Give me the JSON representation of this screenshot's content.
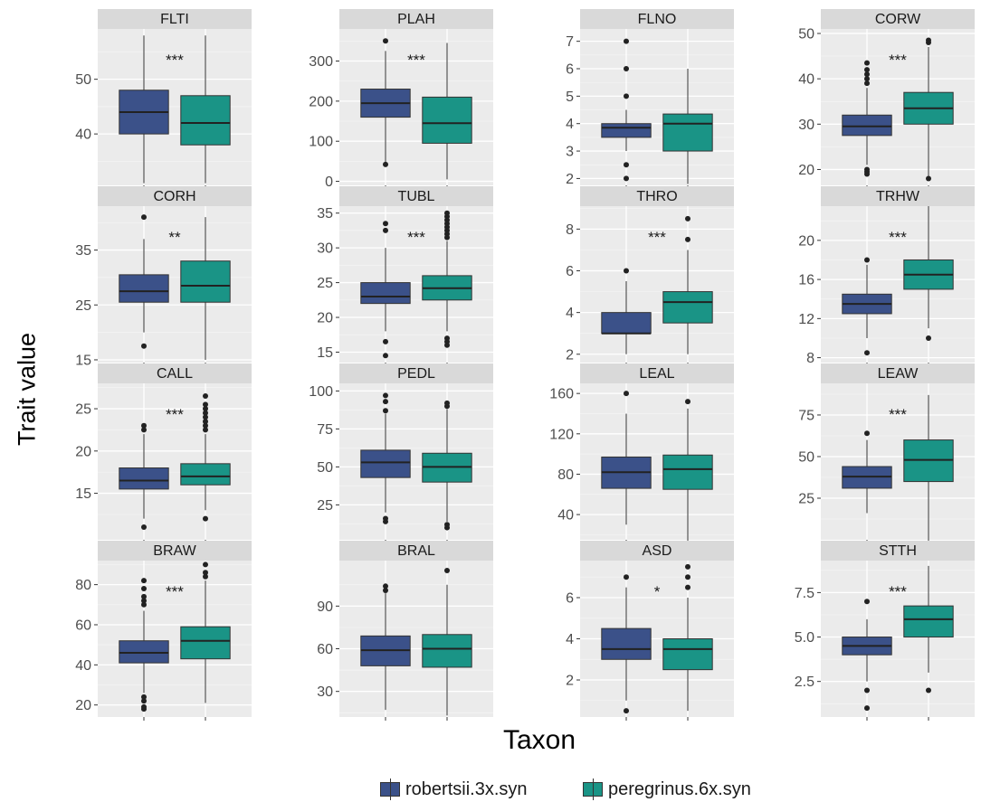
{
  "axes": {
    "ylabel": "Trait value",
    "xlabel": "Taxon"
  },
  "legend": {
    "placement": "bottom",
    "items": [
      {
        "label": "robertsii.3x.syn",
        "color": "#3b5189"
      },
      {
        "label": "peregrinus.6x.syn",
        "color": "#1a9486"
      }
    ]
  },
  "chart_data": {
    "type": "boxplot",
    "grid": true,
    "panel_background": "#ebebeb",
    "strip_background": "#d9d9d9",
    "categories": [
      "robertsii.3x.syn",
      "peregrinus.6x.syn"
    ],
    "panels": [
      {
        "title": "FLTI",
        "ylim": [
          30.6,
          59.2
        ],
        "ticks": [
          40,
          50
        ],
        "annotation": "***",
        "boxes": [
          {
            "min": 31,
            "q1": 40,
            "median": 44,
            "q3": 48,
            "max": 58,
            "outliers": []
          },
          {
            "min": 31,
            "q1": 38,
            "median": 42,
            "q3": 47,
            "max": 58,
            "outliers": []
          }
        ]
      },
      {
        "title": "PLAH",
        "ylim": [
          -10,
          380
        ],
        "ticks": [
          0,
          100,
          200,
          300
        ],
        "annotation": "***",
        "boxes": [
          {
            "min": 45,
            "q1": 160,
            "median": 195,
            "q3": 230,
            "max": 325,
            "outliers": [
              42,
              350
            ]
          },
          {
            "min": 5,
            "q1": 95,
            "median": 145,
            "q3": 210,
            "max": 345,
            "outliers": []
          }
        ]
      },
      {
        "title": "FLNO",
        "ylim": [
          1.75,
          7.45
        ],
        "ticks": [
          2,
          3,
          4,
          5,
          6,
          7
        ],
        "annotation": "",
        "boxes": [
          {
            "min": 3,
            "q1": 3.5,
            "median": 3.85,
            "q3": 4,
            "max": 4.5,
            "outliers": [
              2,
              2.5,
              5,
              6,
              7
            ]
          },
          {
            "min": 1.8,
            "q1": 3,
            "median": 4,
            "q3": 4.35,
            "max": 6,
            "outliers": []
          }
        ]
      },
      {
        "title": "CORW",
        "ylim": [
          16.5,
          51
        ],
        "ticks": [
          20,
          30,
          40,
          50
        ],
        "annotation": "***",
        "boxes": [
          {
            "min": 21,
            "q1": 27.5,
            "median": 29.5,
            "q3": 32,
            "max": 38,
            "outliers": [
              19,
              19.5,
              20,
              39,
              40,
              41,
              42,
              43.5
            ]
          },
          {
            "min": 18,
            "q1": 30,
            "median": 33.5,
            "q3": 37,
            "max": 47,
            "outliers": [
              18,
              48,
              48.5
            ]
          }
        ]
      },
      {
        "title": "CORH",
        "ylim": [
          14.5,
          43
        ],
        "ticks": [
          15,
          25,
          35
        ],
        "annotation": "**",
        "boxes": [
          {
            "min": 20,
            "q1": 25.5,
            "median": 27.5,
            "q3": 30.5,
            "max": 37,
            "outliers": [
              17.5,
              41
            ]
          },
          {
            "min": 15,
            "q1": 25.5,
            "median": 28.5,
            "q3": 33,
            "max": 41,
            "outliers": []
          }
        ]
      },
      {
        "title": "TUBL",
        "ylim": [
          13.5,
          36
        ],
        "ticks": [
          15,
          20,
          25,
          30,
          35
        ],
        "annotation": "***",
        "boxes": [
          {
            "min": 18,
            "q1": 22,
            "median": 23,
            "q3": 25,
            "max": 30,
            "outliers": [
              14.5,
              16.5,
              32.5,
              33.5
            ]
          },
          {
            "min": 18,
            "q1": 22.5,
            "median": 24.2,
            "q3": 26,
            "max": 31,
            "outliers": [
              16,
              16.5,
              17,
              31.5,
              32,
              32.5,
              33,
              33.5,
              34,
              34.5,
              35
            ]
          }
        ]
      },
      {
        "title": "THRO",
        "ylim": [
          1.6,
          9.1
        ],
        "ticks": [
          2,
          4,
          6,
          8
        ],
        "annotation": "***",
        "boxes": [
          {
            "min": 2,
            "q1": 3,
            "median": 3,
            "q3": 4,
            "max": 5.5,
            "outliers": [
              6
            ]
          },
          {
            "min": 2,
            "q1": 3.5,
            "median": 4.5,
            "q3": 5,
            "max": 7,
            "outliers": [
              7.5,
              8.5
            ]
          }
        ]
      },
      {
        "title": "TRHW",
        "ylim": [
          7.5,
          23.5
        ],
        "ticks": [
          8,
          12,
          16,
          20
        ],
        "annotation": "***",
        "boxes": [
          {
            "min": 10,
            "q1": 12.5,
            "median": 13.5,
            "q3": 14.5,
            "max": 17.5,
            "outliers": [
              8.5,
              18
            ]
          },
          {
            "min": 11,
            "q1": 15,
            "median": 16.5,
            "q3": 18,
            "max": 23.5,
            "outliers": [
              10
            ]
          }
        ]
      },
      {
        "title": "CALL",
        "ylim": [
          9.5,
          28
        ],
        "ticks": [
          15,
          20,
          25
        ],
        "annotation": "***",
        "boxes": [
          {
            "min": 12,
            "q1": 15.5,
            "median": 16.5,
            "q3": 18,
            "max": 22,
            "outliers": [
              11,
              22.5,
              23
            ]
          },
          {
            "min": 13,
            "q1": 16,
            "median": 17,
            "q3": 18.5,
            "max": 22,
            "outliers": [
              12,
              22.5,
              23,
              23.5,
              24,
              24.5,
              25,
              25.5,
              26.5
            ]
          }
        ]
      },
      {
        "title": "PEDL",
        "ylim": [
          2,
          105
        ],
        "ticks": [
          25,
          50,
          75,
          100
        ],
        "annotation": "",
        "boxes": [
          {
            "min": 20,
            "q1": 43,
            "median": 53,
            "q3": 61,
            "max": 85,
            "outliers": [
              14,
              16,
              87,
              93,
              97
            ]
          },
          {
            "min": 14,
            "q1": 40,
            "median": 50,
            "q3": 59,
            "max": 88,
            "outliers": [
              10,
              12,
              90,
              92
            ]
          }
        ]
      },
      {
        "title": "LEAL",
        "ylim": [
          15,
          170
        ],
        "ticks": [
          40,
          80,
          120,
          160
        ],
        "annotation": "",
        "boxes": [
          {
            "min": 30,
            "q1": 66,
            "median": 82,
            "q3": 97,
            "max": 140,
            "outliers": [
              160
            ]
          },
          {
            "min": 15,
            "q1": 65,
            "median": 85,
            "q3": 99,
            "max": 145,
            "outliers": [
              152
            ]
          }
        ]
      },
      {
        "title": "LEAW",
        "ylim": [
          0,
          94
        ],
        "ticks": [
          25,
          50,
          75
        ],
        "annotation": "***",
        "boxes": [
          {
            "min": 16,
            "q1": 31,
            "median": 38,
            "q3": 44,
            "max": 60,
            "outliers": [
              64
            ]
          },
          {
            "min": 0,
            "q1": 35,
            "median": 48,
            "q3": 60,
            "max": 87,
            "outliers": []
          }
        ]
      },
      {
        "title": "BRAW",
        "ylim": [
          14,
          92
        ],
        "ticks": [
          20,
          40,
          60,
          80
        ],
        "annotation": "***",
        "boxes": [
          {
            "min": 26,
            "q1": 41,
            "median": 46,
            "q3": 52,
            "max": 67,
            "outliers": [
              18,
              19,
              22,
              24,
              70,
              72,
              74,
              78,
              82
            ]
          },
          {
            "min": 21,
            "q1": 43,
            "median": 52,
            "q3": 59,
            "max": 82,
            "outliers": [
              84,
              86,
              90
            ]
          }
        ]
      },
      {
        "title": "BRAL",
        "ylim": [
          12,
          122
        ],
        "ticks": [
          30,
          60,
          90
        ],
        "annotation": "",
        "boxes": [
          {
            "min": 17,
            "q1": 48,
            "median": 59,
            "q3": 69,
            "max": 99,
            "outliers": [
              101,
              104
            ]
          },
          {
            "min": 13,
            "q1": 47,
            "median": 60,
            "q3": 70,
            "max": 105,
            "outliers": [
              115
            ]
          }
        ]
      },
      {
        "title": "ASD",
        "ylim": [
          0.2,
          7.8
        ],
        "ticks": [
          2,
          4,
          6
        ],
        "annotation": "*",
        "boxes": [
          {
            "min": 1,
            "q1": 3,
            "median": 3.5,
            "q3": 4.5,
            "max": 6.5,
            "outliers": [
              0.5,
              7
            ]
          },
          {
            "min": 0.5,
            "q1": 2.5,
            "median": 3.5,
            "q3": 4,
            "max": 6,
            "outliers": [
              6.5,
              7,
              7.5
            ]
          }
        ]
      },
      {
        "title": "STTH",
        "ylim": [
          0.5,
          9.3
        ],
        "ticks": [
          2.5,
          5.0,
          7.5
        ],
        "annotation": "***",
        "boxes": [
          {
            "min": 2.5,
            "q1": 4,
            "median": 4.5,
            "q3": 5,
            "max": 6,
            "outliers": [
              1,
              2,
              7
            ]
          },
          {
            "min": 3,
            "q1": 5,
            "median": 6,
            "q3": 6.75,
            "max": 9,
            "outliers": [
              2
            ]
          }
        ]
      }
    ]
  }
}
